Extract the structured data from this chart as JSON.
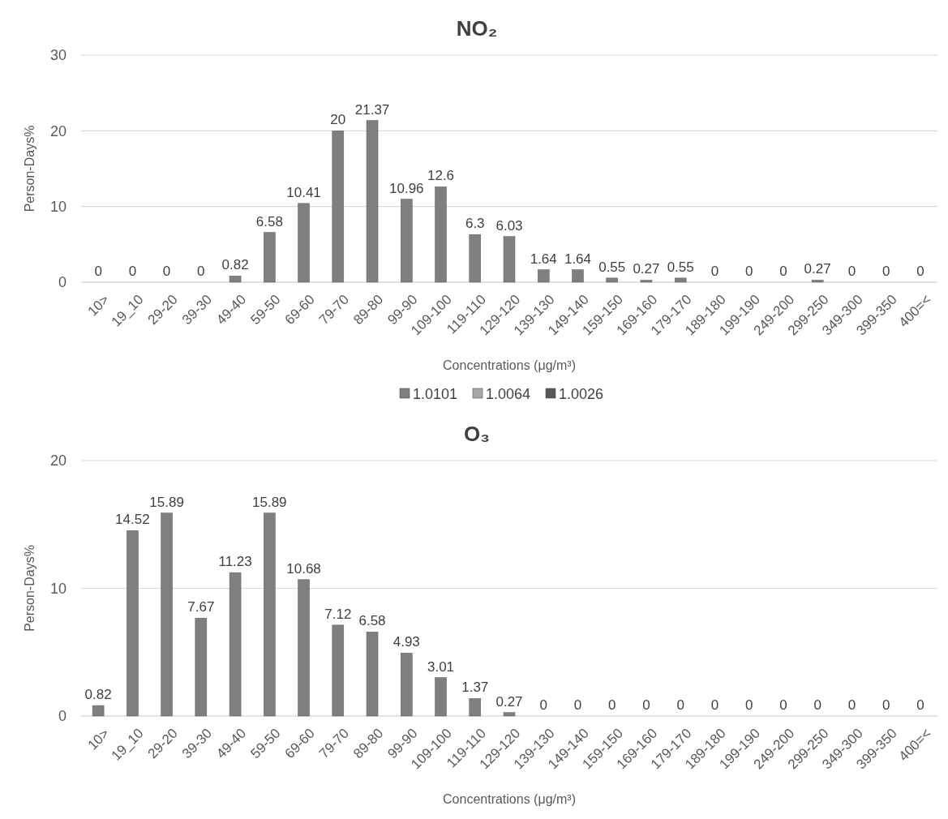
{
  "chart_data": [
    {
      "type": "bar",
      "title": "NO₂",
      "xlabel": "Concentrations (μg/m³)",
      "ylabel": "Person-Days%",
      "categories": [
        "10>",
        "19_10",
        "29-20",
        "39-30",
        "49-40",
        "59-50",
        "69-60",
        "79-70",
        "89-80",
        "99-90",
        "109-100",
        "119-110",
        "129-120",
        "139-130",
        "149-140",
        "159-150",
        "169-160",
        "179-170",
        "189-180",
        "199-190",
        "249-200",
        "299-250",
        "349-300",
        "399-350",
        "400=<"
      ],
      "series": [
        {
          "name": "1.0101",
          "color": "#7f7f7f",
          "values": [
            0,
            0,
            0,
            0,
            0.82,
            6.58,
            10.41,
            20,
            21.37,
            10.96,
            12.6,
            6.3,
            6.03,
            1.64,
            1.64,
            0.55,
            0.27,
            0.55,
            0,
            0,
            0,
            0.27,
            0,
            0,
            0
          ]
        },
        {
          "name": "1.0064",
          "color": "#a6a6a6",
          "values": [
            null,
            null,
            null,
            null,
            null,
            null,
            null,
            null,
            null,
            null,
            null,
            null,
            null,
            null,
            null,
            null,
            null,
            null,
            null,
            null,
            null,
            null,
            null,
            null,
            null
          ]
        },
        {
          "name": "1.0026",
          "color": "#595959",
          "values": [
            null,
            null,
            null,
            null,
            null,
            null,
            null,
            null,
            null,
            null,
            null,
            null,
            null,
            null,
            null,
            null,
            null,
            null,
            null,
            null,
            null,
            null,
            null,
            null,
            null
          ]
        }
      ],
      "ylim": [
        0,
        30
      ],
      "yticks": [
        0,
        10,
        20,
        30
      ],
      "grid": "y",
      "data_labels": true,
      "legend": "bottom"
    },
    {
      "type": "bar",
      "title": "O₃",
      "xlabel": "Concentrations (μg/m³)",
      "ylabel": "Person-Days%",
      "categories": [
        "10>",
        "19_10",
        "29-20",
        "39-30",
        "49-40",
        "59-50",
        "69-60",
        "79-70",
        "89-80",
        "99-90",
        "109-100",
        "119-110",
        "129-120",
        "139-130",
        "149-140",
        "159-150",
        "169-160",
        "179-170",
        "189-180",
        "199-190",
        "249-200",
        "299-250",
        "349-300",
        "399-350",
        "400=<"
      ],
      "series": [
        {
          "color": "#7f7f7f",
          "values": [
            0.82,
            14.52,
            15.89,
            7.67,
            11.23,
            15.89,
            10.68,
            7.12,
            6.58,
            4.93,
            3.01,
            1.37,
            0.27,
            0,
            0,
            0,
            0,
            0,
            0,
            0,
            0,
            0,
            0,
            0,
            0
          ]
        }
      ],
      "ylim": [
        0,
        20
      ],
      "yticks": [
        0,
        10,
        20
      ],
      "grid": "y",
      "data_labels": true
    }
  ]
}
